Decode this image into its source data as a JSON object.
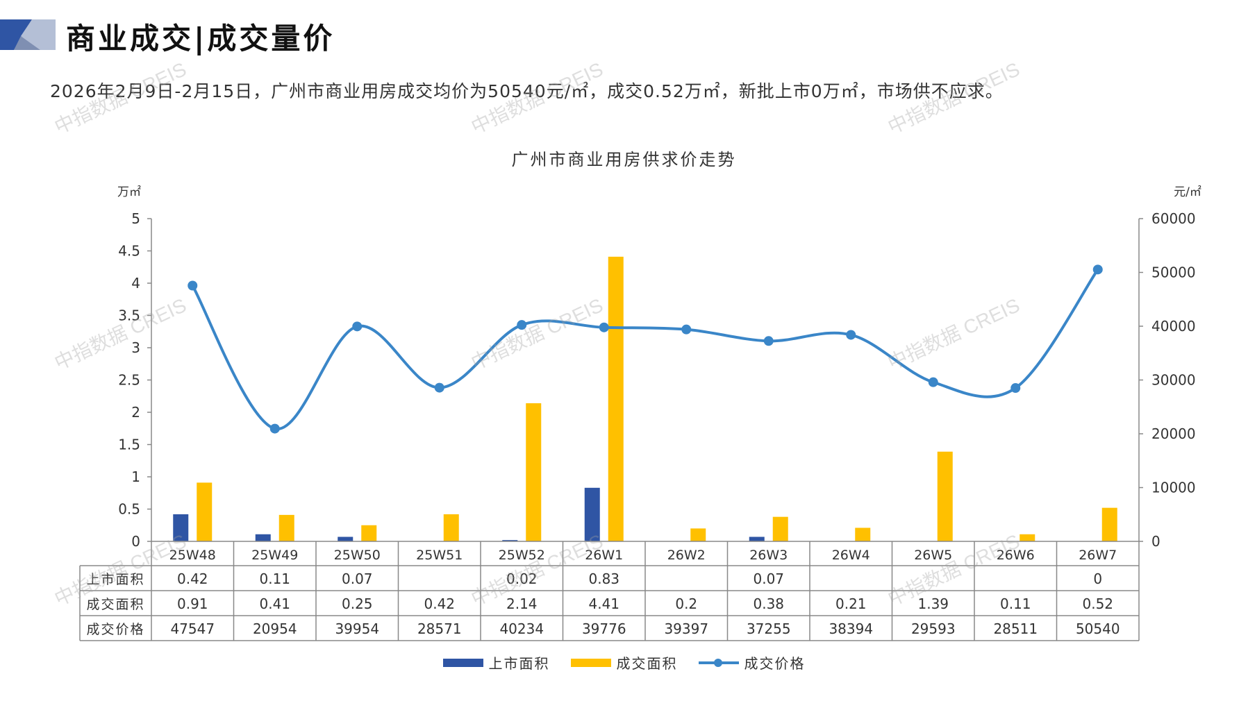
{
  "header": {
    "section_title": "商业成交|成交量价",
    "summary": "2026年2月9日-2月15日，广州市商业用房成交均价为50540元/㎡，成交0.52万㎡，新批上市0万㎡，市场供不应求。"
  },
  "watermark_text": "中指数据 CREIS",
  "colors": {
    "supply": "#2f55a4",
    "deal_area": "#ffc000",
    "price": "#3a86c8",
    "header_dark": "#2f55a4",
    "header_light": "#b4bfd6"
  },
  "chart_data": {
    "type": "bar",
    "title": "广州市商业用房供求价走势",
    "left_axis_unit": "万㎡",
    "right_axis_unit": "元/㎡",
    "categories": [
      "25W48",
      "25W49",
      "25W50",
      "25W51",
      "25W52",
      "26W1",
      "26W2",
      "26W3",
      "26W4",
      "26W5",
      "26W6",
      "26W7"
    ],
    "ylim_left": [
      0,
      5
    ],
    "left_ticks": [
      "0",
      "0.5",
      "1",
      "1.5",
      "2",
      "2.5",
      "3",
      "3.5",
      "4",
      "4.5",
      "5"
    ],
    "ylim_right": [
      0,
      60000
    ],
    "right_ticks": [
      "0",
      "10000",
      "20000",
      "30000",
      "40000",
      "50000",
      "60000"
    ],
    "series": [
      {
        "name": "上市面积",
        "kind": "bar",
        "axis": "left",
        "values": [
          0.42,
          0.11,
          0.07,
          null,
          0.02,
          0.83,
          null,
          0.07,
          null,
          null,
          null,
          0
        ],
        "labels": [
          "0.42",
          "0.11",
          "0.07",
          "",
          "0.02",
          "0.83",
          "",
          "0.07",
          "",
          "",
          "",
          "0"
        ]
      },
      {
        "name": "成交面积",
        "kind": "bar",
        "axis": "left",
        "values": [
          0.91,
          0.41,
          0.25,
          0.42,
          2.14,
          4.41,
          0.2,
          0.38,
          0.21,
          1.39,
          0.11,
          0.52
        ],
        "labels": [
          "0.91",
          "0.41",
          "0.25",
          "0.42",
          "2.14",
          "4.41",
          "0.2",
          "0.38",
          "0.21",
          "1.39",
          "0.11",
          "0.52"
        ]
      },
      {
        "name": "成交价格",
        "kind": "line",
        "axis": "right",
        "values": [
          47547,
          20954,
          39954,
          28571,
          40234,
          39776,
          39397,
          37255,
          38394,
          29593,
          28511,
          50540
        ],
        "labels": [
          "47547",
          "20954",
          "39954",
          "28571",
          "40234",
          "39776",
          "39397",
          "37255",
          "38394",
          "29593",
          "28511",
          "50540"
        ]
      }
    ],
    "legend_position": "bottom",
    "grid": false
  }
}
